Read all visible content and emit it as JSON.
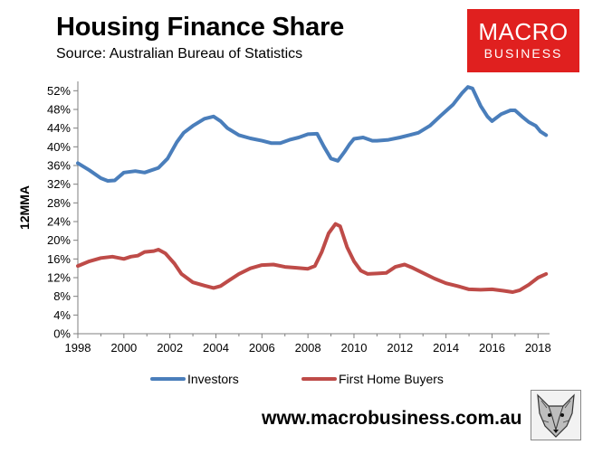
{
  "header": {
    "title": "Housing Finance Share",
    "subtitle": "Source: Australian Bureau of Statistics"
  },
  "logo": {
    "line1": "MACRO",
    "line2": "BUSINESS"
  },
  "footer": {
    "website": "www.macrobusiness.com.au"
  },
  "colors": {
    "investors": "#4a7ebb",
    "first_home_buyers": "#be4b48",
    "logo_bg": "#e0201f"
  },
  "chart_data": {
    "type": "line",
    "title": "",
    "xlabel": "",
    "ylabel": "12MMA",
    "xlim": [
      1998,
      2018.5
    ],
    "ylim": [
      0,
      54
    ],
    "x_ticks": [
      1998,
      2000,
      2002,
      2004,
      2006,
      2008,
      2010,
      2012,
      2014,
      2016,
      2018
    ],
    "y_ticks": [
      0,
      4,
      8,
      12,
      16,
      20,
      24,
      28,
      32,
      36,
      40,
      44,
      48,
      52
    ],
    "y_tick_labels": [
      "0%",
      "4%",
      "8%",
      "12%",
      "16%",
      "20%",
      "24%",
      "28%",
      "32%",
      "36%",
      "40%",
      "44%",
      "48%",
      "52%"
    ],
    "grid": false,
    "legend_position": "bottom",
    "series": [
      {
        "name": "Investors",
        "x": [
          1998.0,
          1998.5,
          1999.0,
          1999.3,
          1999.6,
          2000.0,
          2000.5,
          2000.9,
          2001.5,
          2001.9,
          2002.3,
          2002.6,
          2003.0,
          2003.5,
          2003.9,
          2004.2,
          2004.5,
          2005.0,
          2005.5,
          2006.0,
          2006.4,
          2006.8,
          2007.2,
          2007.6,
          2008.0,
          2008.4,
          2008.7,
          2009.0,
          2009.3,
          2009.6,
          2009.8,
          2010.0,
          2010.4,
          2010.8,
          2011.0,
          2011.5,
          2012.0,
          2012.4,
          2012.8,
          2013.3,
          2013.8,
          2014.3,
          2014.7,
          2014.95,
          2015.15,
          2015.5,
          2015.8,
          2016.0,
          2016.4,
          2016.8,
          2017.0,
          2017.3,
          2017.6,
          2017.9,
          2018.1,
          2018.35
        ],
        "values": [
          36.5,
          35.0,
          33.3,
          32.7,
          32.8,
          34.5,
          34.8,
          34.5,
          35.5,
          37.5,
          41.0,
          43.0,
          44.5,
          46.0,
          46.5,
          45.5,
          44.0,
          42.5,
          41.8,
          41.3,
          40.8,
          40.8,
          41.5,
          42.0,
          42.7,
          42.8,
          40.0,
          37.5,
          37.0,
          39.0,
          40.5,
          41.7,
          42.0,
          41.3,
          41.3,
          41.5,
          42.0,
          42.5,
          43.0,
          44.5,
          46.8,
          49.0,
          51.5,
          52.8,
          52.5,
          48.8,
          46.5,
          45.5,
          47.0,
          47.8,
          47.8,
          46.5,
          45.3,
          44.5,
          43.3,
          42.5
        ]
      },
      {
        "name": "First Home Buyers",
        "x": [
          1998.0,
          1998.5,
          1999.0,
          1999.5,
          2000.0,
          2000.3,
          2000.6,
          2000.9,
          2001.3,
          2001.5,
          2001.8,
          2002.2,
          2002.5,
          2003.0,
          2003.5,
          2003.9,
          2004.2,
          2004.6,
          2005.0,
          2005.5,
          2006.0,
          2006.5,
          2007.0,
          2007.5,
          2008.0,
          2008.3,
          2008.6,
          2008.9,
          2009.2,
          2009.4,
          2009.7,
          2010.0,
          2010.3,
          2010.6,
          2011.0,
          2011.4,
          2011.8,
          2012.2,
          2012.5,
          2013.0,
          2013.5,
          2014.0,
          2014.5,
          2015.0,
          2015.5,
          2016.0,
          2016.5,
          2016.9,
          2017.2,
          2017.6,
          2018.0,
          2018.35
        ],
        "values": [
          14.5,
          15.5,
          16.2,
          16.5,
          16.0,
          16.5,
          16.7,
          17.5,
          17.7,
          18.0,
          17.2,
          15.0,
          12.8,
          11.0,
          10.3,
          9.8,
          10.2,
          11.5,
          12.8,
          14.0,
          14.7,
          14.8,
          14.3,
          14.1,
          13.9,
          14.5,
          17.5,
          21.5,
          23.5,
          23.0,
          18.5,
          15.5,
          13.5,
          12.8,
          12.9,
          13.0,
          14.3,
          14.8,
          14.2,
          13.0,
          11.8,
          10.8,
          10.2,
          9.5,
          9.4,
          9.5,
          9.2,
          8.9,
          9.3,
          10.5,
          12.0,
          12.8
        ]
      }
    ]
  }
}
